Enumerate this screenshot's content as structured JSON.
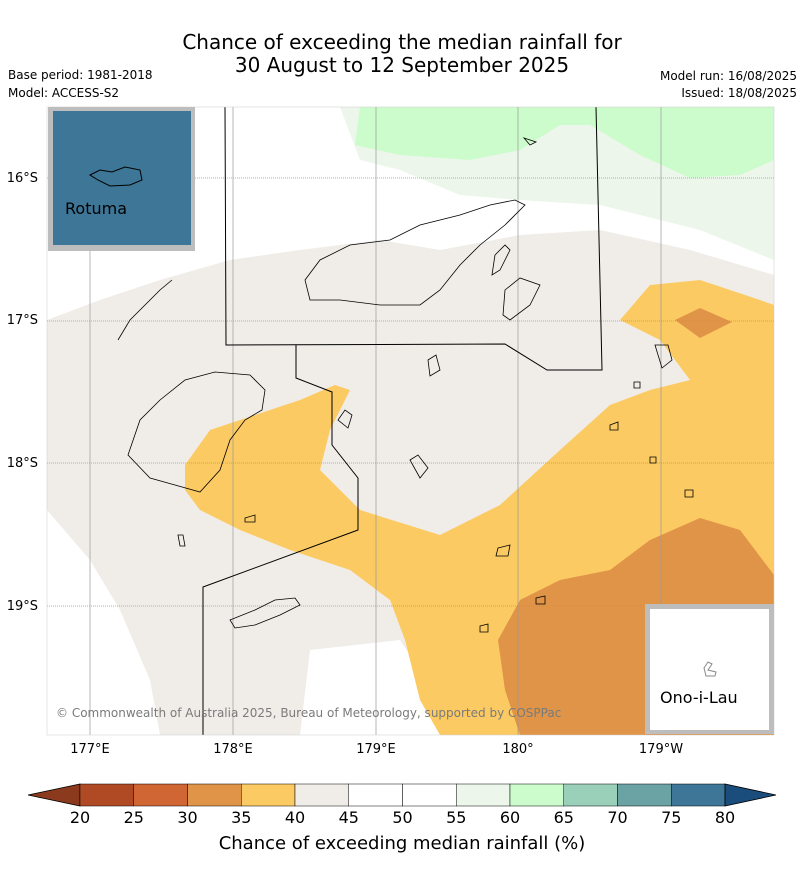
{
  "title": {
    "line1": "Chance of exceeding the median rainfall for",
    "line2": "30 August to 12 September 2025"
  },
  "meta": {
    "base_period": "Base period: 1981-2018",
    "model": "Model: ACCESS-S2",
    "model_run": "Model run: 16/08/2025",
    "issued": "Issued: 18/08/2025"
  },
  "axes": {
    "lat_labels": [
      "16°S",
      "17°S",
      "18°S",
      "19°S"
    ],
    "lon_labels": [
      "177°E",
      "178°E",
      "179°E",
      "180°",
      "179°W"
    ]
  },
  "insets": {
    "rotuma": "Rotuma",
    "ono_i_lau": "Ono-i-Lau"
  },
  "copyright": "© Commonwealth of Australia 2025, Bureau of Meteorology, supported by COSPPac",
  "colorbar": {
    "title": "Chance of exceeding median rainfall (%)",
    "ticks": [
      "20",
      "25",
      "30",
      "35",
      "40",
      "45",
      "50",
      "55",
      "60",
      "65",
      "70",
      "75",
      "80"
    ],
    "colors": [
      "#8b3a1e",
      "#b04a25",
      "#cf6633",
      "#e09448",
      "#fcca63",
      "#f0ede8",
      "#ffffff",
      "#ffffff",
      "#ecf6ea",
      "#ccfccb",
      "#9acfba",
      "#6ba3a4",
      "#3d7696",
      "#1a4c7c"
    ]
  },
  "palette": {
    "ocean_neutral": "#f0ede8",
    "above_60": "#ccfccb",
    "light_green": "#ecf6ea",
    "band_35_40": "#fcca63",
    "band_30_35": "#e09448",
    "rotuma_fill": "#3d7696"
  }
}
